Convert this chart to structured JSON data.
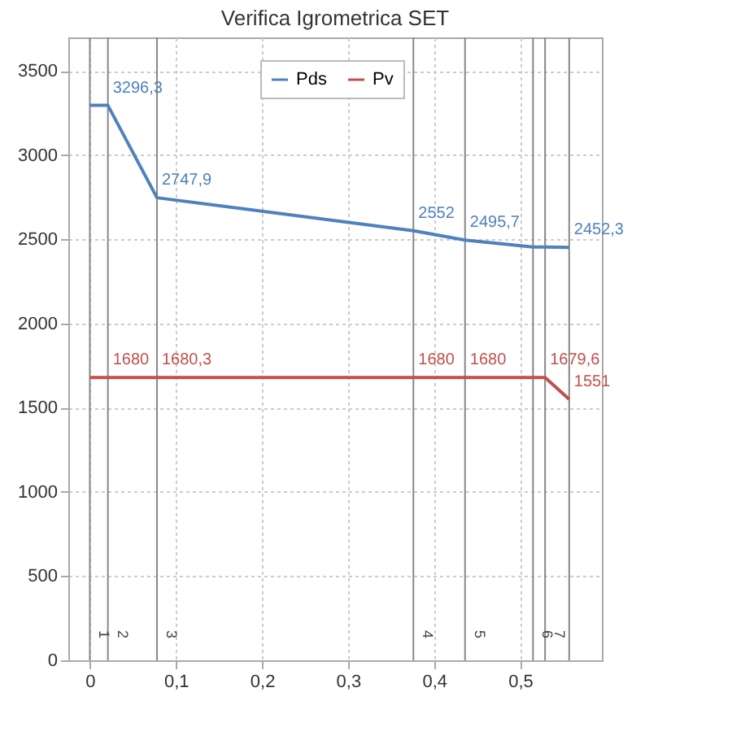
{
  "chart_data": {
    "type": "line",
    "title": "Verifica Igrometrica SET",
    "x": [
      0,
      0.021,
      0.078,
      0.376,
      0.436,
      0.515,
      0.529,
      0.557
    ],
    "series": [
      {
        "name": "Pds",
        "color": "#4f81bd",
        "values": [
          3296.3,
          3296.3,
          2747.9,
          2552,
          2495.7,
          2455,
          2455,
          2452.3
        ],
        "value_labels": [
          null,
          "3296,3",
          "2747,9",
          "2552",
          "2495,7",
          null,
          null,
          "2452,3"
        ]
      },
      {
        "name": "Pv",
        "color": "#c0504d",
        "values": [
          1680.3,
          1680.3,
          1680.3,
          1680,
          1680,
          1680,
          1679.6,
          1551
        ],
        "value_labels": [
          null,
          "1680",
          "1680,3",
          "1680",
          "1680",
          null,
          "1679,6",
          "1551"
        ]
      }
    ],
    "xlim": [
      -0.025,
      0.595
    ],
    "xticks": [
      {
        "value": 0,
        "label": "0"
      },
      {
        "value": 0.1,
        "label": "0,1"
      },
      {
        "value": 0.2,
        "label": "0,2"
      },
      {
        "value": 0.3,
        "label": "0,3"
      },
      {
        "value": 0.4,
        "label": "0,4"
      },
      {
        "value": 0.5,
        "label": "0,5"
      }
    ],
    "ylim": [
      0,
      3700
    ],
    "yticks": [
      0,
      500,
      1000,
      1500,
      2000,
      2500,
      3000,
      3500
    ],
    "ref_lines": [
      {
        "axis": "x",
        "value": 0
      },
      {
        "axis": "x",
        "value": 0.021
      },
      {
        "axis": "x",
        "value": 0.078
      },
      {
        "axis": "x",
        "value": 0.376
      },
      {
        "axis": "x",
        "value": 0.436
      },
      {
        "axis": "x",
        "value": 0.515
      },
      {
        "axis": "x",
        "value": 0.529
      },
      {
        "axis": "x",
        "value": 0.557
      }
    ],
    "annotations": [
      "1",
      "2",
      "3",
      "4",
      "5",
      "6",
      "7"
    ],
    "grid": true,
    "legend": "top",
    "marker": "none",
    "line_style": "solid"
  }
}
